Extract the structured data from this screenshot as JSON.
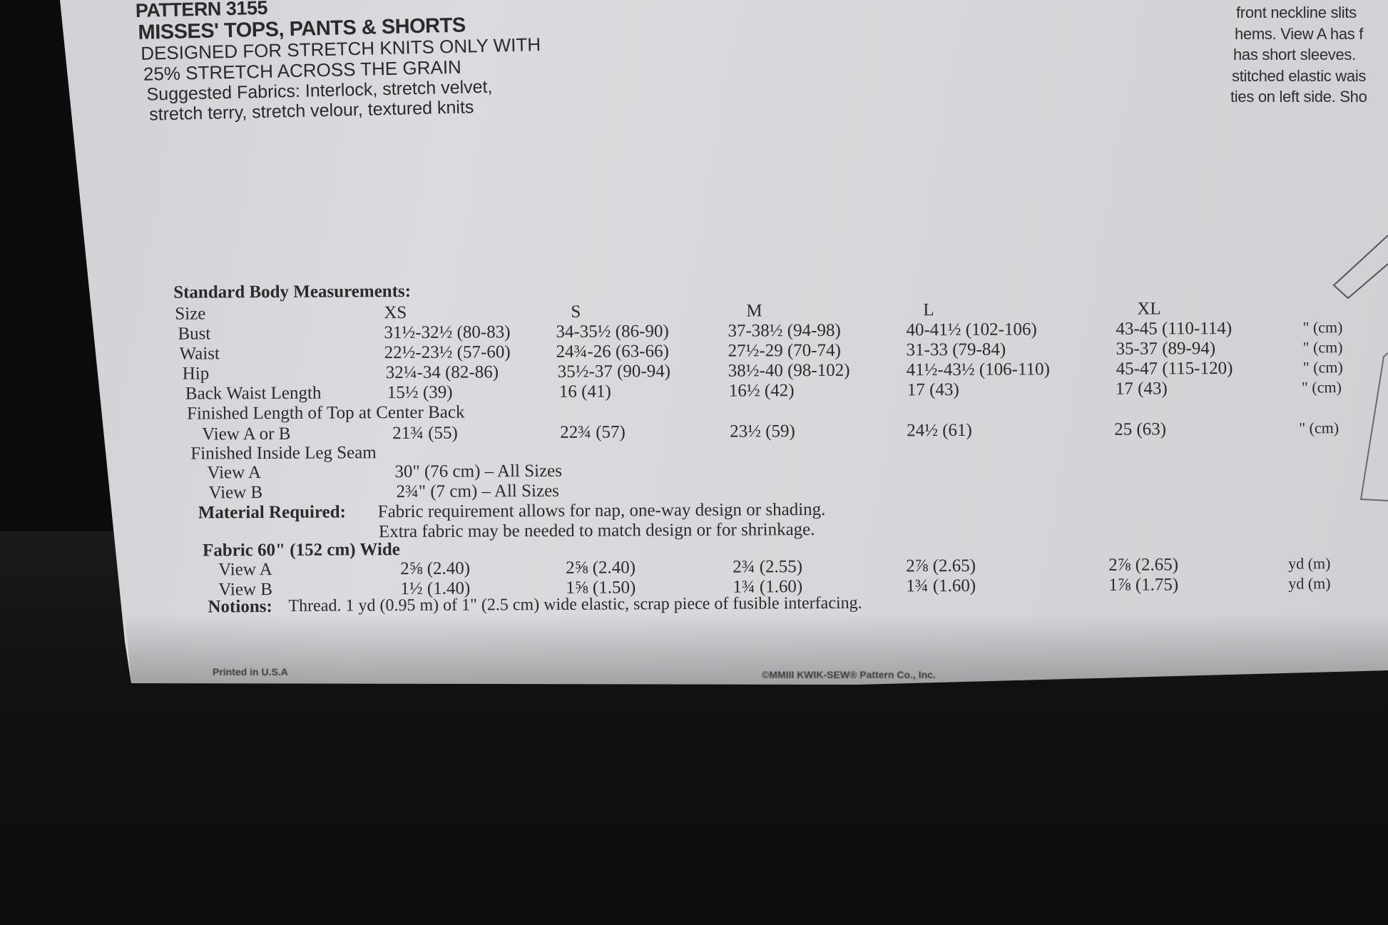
{
  "header": {
    "pattern_number": "PATTERN 3155",
    "title": "MISSES' TOPS, PANTS & SHORTS",
    "designed_line1": "DESIGNED FOR STRETCH KNITS ONLY WITH",
    "designed_line2": "25% STRETCH ACROSS THE GRAIN",
    "fabrics_line1": "Suggested Fabrics: Interlock, stretch velvet,",
    "fabrics_line2": "stretch terry, stretch velour, textured knits"
  },
  "description": {
    "lines": [
      "front neckline slits",
      "hems. View A has f",
      "has short sleeves.",
      "stitched elastic wais",
      "ties on left side. Sho"
    ]
  },
  "measurements": {
    "heading": "Standard Body Measurements:",
    "rows": [
      {
        "label": "Size",
        "values": [
          "XS",
          "S",
          "M",
          "L",
          "XL"
        ],
        "unit": ""
      },
      {
        "label": "Bust",
        "values": [
          "31½-32½ (80-83)",
          "34-35½ (86-90)",
          "37-38½ (94-98)",
          "40-41½ (102-106)",
          "43-45 (110-114)"
        ],
        "unit": "\" (cm)"
      },
      {
        "label": "Waist",
        "values": [
          "22½-23½ (57-60)",
          "24¾-26 (63-66)",
          "27½-29 (70-74)",
          "31-33 (79-84)",
          "35-37 (89-94)"
        ],
        "unit": "\" (cm)"
      },
      {
        "label": "Hip",
        "values": [
          "32¼-34 (82-86)",
          "35½-37 (90-94)",
          "38½-40 (98-102)",
          "41½-43½ (106-110)",
          "45-47 (115-120)"
        ],
        "unit": "\" (cm)"
      },
      {
        "label": "Back Waist Length",
        "values": [
          "15½ (39)",
          "16 (41)",
          "16½ (42)",
          "17 (43)",
          "17 (43)"
        ],
        "unit": "\" (cm)"
      },
      {
        "label": "Finished Length of Top at Center Back",
        "values": [],
        "unit": ""
      },
      {
        "label": "View A or B",
        "values": [
          "21¾ (55)",
          "22¾ (57)",
          "23½ (59)",
          "24½ (61)",
          "25 (63)"
        ],
        "unit": "\" (cm)"
      },
      {
        "label": "Finished Inside Leg Seam",
        "values": [],
        "unit": ""
      },
      {
        "label": "View A",
        "values": [
          "30\" (76 cm) – All Sizes"
        ],
        "unit": ""
      },
      {
        "label": "View B",
        "values": [
          "2¾\" (7 cm) – All Sizes"
        ],
        "unit": ""
      }
    ]
  },
  "material": {
    "label": "Material Required:",
    "line1": "Fabric requirement allows for nap, one-way design or shading.",
    "line2": "Extra fabric may be needed to match design or for shrinkage.",
    "fabric_heading": "Fabric 60\" (152 cm) Wide",
    "rows": [
      {
        "label": "View A",
        "values": [
          "2⅝ (2.40)",
          "2⅝ (2.40)",
          "2¾ (2.55)",
          "2⅞ (2.65)",
          "2⅞ (2.65)"
        ],
        "unit": "yd (m)"
      },
      {
        "label": "View B",
        "values": [
          "1½ (1.40)",
          "1⅝ (1.50)",
          "1¾ (1.60)",
          "1¾ (1.60)",
          "1⅞ (1.75)"
        ],
        "unit": "yd (m)"
      }
    ]
  },
  "notions": {
    "label": "Notions:",
    "text": "Thread. 1 yd (0.95 m) of 1\" (2.5 cm) wide elastic, scrap piece of fusible interfacing."
  },
  "footer": {
    "printed": "Printed in U.S.A",
    "copyright": "©MMIII  KWIK-SEW® Pattern Co., Inc."
  },
  "colors": {
    "paper": "#d6d7da",
    "ink": "#2b2b2e",
    "background": "#0c0c0c"
  }
}
